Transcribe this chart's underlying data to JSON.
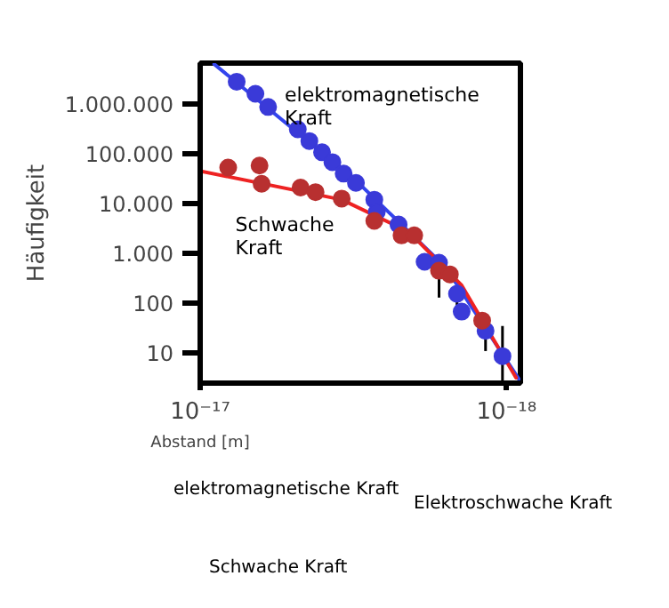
{
  "chart_data": {
    "type": "scatter",
    "xlabel": "Abstand [m]",
    "ylabel": "Häufigkeit",
    "log": "xy",
    "grid": false,
    "marker": "circle",
    "xlim": [
      1e-17,
      9e-19
    ],
    "xticks": [
      {
        "value": 1e-17,
        "label": "10⁻¹⁷"
      },
      {
        "value": 1e-18,
        "label": "10⁻¹⁸"
      }
    ],
    "ylim": [
      2.5,
      6600000
    ],
    "yticks": [
      {
        "value": 10,
        "label": "10"
      },
      {
        "value": 100,
        "label": "100"
      },
      {
        "value": 1000,
        "label": "1.000"
      },
      {
        "value": 10000,
        "label": "10.000"
      },
      {
        "value": 100000,
        "label": "100.000"
      },
      {
        "value": 1000000,
        "label": "1.000.000"
      }
    ],
    "series": [
      {
        "type": "line",
        "marker": "none",
        "color": "#3344ee",
        "x": [
          9e-18,
          3.1e-18,
          1.58e-18,
          9.1e-19
        ],
        "values": [
          6300000,
          29000,
          530,
          3
        ]
      },
      {
        "type": "line",
        "marker": "none",
        "color": "#ee2222",
        "x": [
          1e-17,
          3.45e-18,
          2.08e-18,
          1.4e-18,
          9.3e-19
        ],
        "values": [
          45000,
          12000,
          2700,
          230,
          3.2
        ]
      },
      {
        "name": "elektromagnetische\nKraft",
        "color": "#3a3ad8",
        "x": [
          7.6e-18,
          6.6e-18,
          6e-18,
          4.8e-18,
          4.4e-18,
          4e-18,
          3.7e-18,
          3.4e-18,
          3.1e-18,
          2.7e-18,
          2.65e-18,
          2.25e-18,
          1.85e-18,
          1.66e-18,
          1.45e-18,
          1.4e-18,
          1.17e-18,
          1.03e-18
        ],
        "values": [
          2800000,
          1600000,
          870000,
          310000,
          180000,
          107000,
          68000,
          40000,
          26000,
          12000,
          6800,
          3800,
          680,
          650,
          155,
          68,
          28,
          8.7
        ],
        "errors": [
          null,
          null,
          null,
          null,
          null,
          null,
          null,
          null,
          null,
          null,
          null,
          null,
          null,
          [
            130,
            400
          ],
          [
            80,
            180
          ],
          null,
          [
            11,
            35
          ],
          [
            2.8,
            35
          ]
        ]
      },
      {
        "name": "Schwache\nKraft",
        "color": "#b83030",
        "x": [
          8.1e-18,
          6.4e-18,
          6.3e-18,
          4.7e-18,
          4.2e-18,
          3.45e-18,
          2.7e-18,
          2.2e-18,
          2e-18,
          1.66e-18,
          1.53e-18,
          1.2e-18
        ],
        "values": [
          53000,
          58000,
          25000,
          21000,
          17000,
          12600,
          4500,
          2300,
          2300,
          450,
          380,
          45
        ]
      }
    ],
    "annotations": [
      "elektromagnetische Kraft",
      "Elektroschwache Kraft",
      "Schwache Kraft"
    ]
  }
}
